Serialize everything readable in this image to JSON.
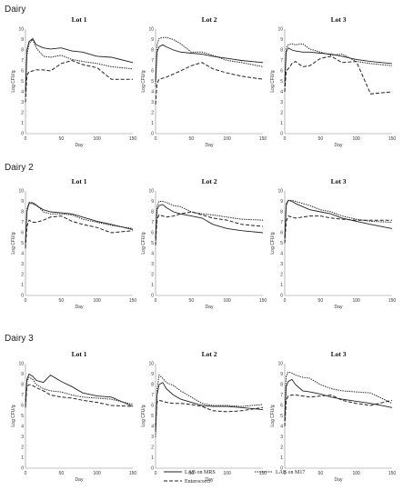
{
  "sections": [
    "Dairy",
    "Dairy 2",
    "Dairy 3"
  ],
  "legend": {
    "items": [
      {
        "name": "LAB on MRS",
        "style": "solid"
      },
      {
        "name": "LAB on M17",
        "style": "dotted"
      },
      {
        "name": "Enterococci",
        "style": "dashed"
      }
    ]
  },
  "chart_data": [
    {
      "type": "line",
      "section": "Dairy",
      "title": "Lot 1",
      "xlabel": "Day",
      "ylabel": "Log CFU/g",
      "xlim": [
        0,
        150
      ],
      "ylim": [
        0,
        10
      ],
      "xticks": [
        0,
        50,
        100,
        150
      ],
      "yticks": [
        0,
        1,
        2,
        3,
        4,
        5,
        6,
        7,
        8,
        9,
        10
      ],
      "series": [
        {
          "name": "LAB on MRS",
          "x": [
            0,
            2,
            5,
            10,
            15,
            25,
            35,
            50,
            65,
            80,
            100,
            120,
            150
          ],
          "y": [
            4.0,
            8.0,
            8.8,
            9.1,
            8.5,
            8.2,
            8.1,
            8.2,
            7.9,
            7.8,
            7.4,
            7.3,
            6.8
          ]
        },
        {
          "name": "LAB on M17",
          "x": [
            0,
            2,
            5,
            10,
            15,
            25,
            35,
            50,
            65,
            80,
            100,
            120,
            150
          ],
          "y": [
            3.5,
            7.5,
            8.6,
            9.0,
            8.2,
            7.4,
            7.3,
            7.5,
            7.1,
            6.9,
            6.7,
            6.4,
            6.2
          ]
        },
        {
          "name": "Enterococci",
          "x": [
            0,
            2,
            5,
            10,
            15,
            25,
            35,
            50,
            65,
            80,
            100,
            120,
            150
          ],
          "y": [
            3.0,
            5.6,
            5.9,
            6.0,
            6.1,
            6.1,
            6.0,
            6.7,
            7.0,
            6.6,
            6.3,
            5.2,
            5.2
          ]
        }
      ]
    },
    {
      "type": "line",
      "section": "Dairy",
      "title": "Lot 2",
      "xlabel": "Day",
      "ylabel": "Log CFU/g",
      "xlim": [
        0,
        150
      ],
      "ylim": [
        0,
        10
      ],
      "xticks": [
        0,
        50,
        100,
        150
      ],
      "yticks": [
        0,
        1,
        2,
        3,
        4,
        5,
        6,
        7,
        8,
        9,
        10
      ],
      "series": [
        {
          "name": "LAB on MRS",
          "x": [
            0,
            2,
            5,
            10,
            15,
            25,
            35,
            50,
            65,
            80,
            100,
            120,
            150
          ],
          "y": [
            5.0,
            7.8,
            8.3,
            8.5,
            8.3,
            8.0,
            7.8,
            7.7,
            7.6,
            7.4,
            7.2,
            7.0,
            6.8
          ]
        },
        {
          "name": "LAB on M17",
          "x": [
            0,
            2,
            5,
            10,
            15,
            25,
            35,
            50,
            65,
            80,
            100,
            120,
            150
          ],
          "y": [
            4.5,
            8.5,
            9.1,
            9.2,
            9.2,
            9.0,
            8.6,
            7.8,
            7.8,
            7.5,
            7.0,
            6.8,
            6.4
          ]
        },
        {
          "name": "Enterococci",
          "x": [
            0,
            2,
            5,
            10,
            15,
            25,
            35,
            50,
            65,
            80,
            100,
            120,
            150
          ],
          "y": [
            2.8,
            4.8,
            5.2,
            5.3,
            5.4,
            5.7,
            6.0,
            6.5,
            6.8,
            6.2,
            5.8,
            5.5,
            5.2
          ]
        }
      ]
    },
    {
      "type": "line",
      "section": "Dairy",
      "title": "Lot 3",
      "xlabel": "Day",
      "ylabel": "Log CFU/g",
      "xlim": [
        0,
        150
      ],
      "ylim": [
        0,
        10
      ],
      "xticks": [
        0,
        50,
        100,
        150
      ],
      "yticks": [
        0,
        1,
        2,
        3,
        4,
        5,
        6,
        7,
        8,
        9,
        10
      ],
      "series": [
        {
          "name": "LAB on MRS",
          "x": [
            0,
            2,
            5,
            10,
            15,
            25,
            35,
            50,
            65,
            80,
            100,
            120,
            150
          ],
          "y": [
            4.5,
            7.8,
            8.2,
            8.0,
            7.9,
            7.8,
            7.8,
            7.7,
            7.6,
            7.4,
            7.1,
            6.9,
            6.7
          ]
        },
        {
          "name": "LAB on M17",
          "x": [
            0,
            2,
            5,
            10,
            15,
            25,
            35,
            50,
            65,
            80,
            100,
            120,
            150
          ],
          "y": [
            5.0,
            8.2,
            8.5,
            8.6,
            8.5,
            8.6,
            8.1,
            7.8,
            7.5,
            7.6,
            6.9,
            6.7,
            6.5
          ]
        },
        {
          "name": "Enterococci",
          "x": [
            0,
            2,
            5,
            10,
            15,
            25,
            35,
            50,
            65,
            80,
            100,
            120,
            150
          ],
          "y": [
            4.0,
            6.0,
            6.2,
            6.7,
            6.9,
            6.4,
            6.5,
            7.2,
            7.4,
            6.8,
            6.9,
            3.8,
            4.0
          ]
        }
      ]
    },
    {
      "type": "line",
      "section": "Dairy 2",
      "title": "Lot 1",
      "xlabel": "Day",
      "ylabel": "Log CFU/g",
      "xlim": [
        0,
        150
      ],
      "ylim": [
        0,
        10
      ],
      "xticks": [
        0,
        50,
        100,
        150
      ],
      "yticks": [
        0,
        1,
        2,
        3,
        4,
        5,
        6,
        7,
        8,
        9,
        10
      ],
      "series": [
        {
          "name": "LAB on MRS",
          "x": [
            0,
            2,
            5,
            10,
            15,
            25,
            35,
            50,
            65,
            80,
            100,
            120,
            150
          ],
          "y": [
            5.0,
            8.0,
            8.8,
            8.8,
            8.6,
            8.2,
            8.0,
            7.9,
            7.8,
            7.5,
            7.1,
            6.8,
            6.3
          ]
        },
        {
          "name": "LAB on M17",
          "x": [
            0,
            2,
            5,
            10,
            15,
            25,
            35,
            50,
            65,
            80,
            100,
            120,
            150
          ],
          "y": [
            4.8,
            8.3,
            8.9,
            8.9,
            8.7,
            8.0,
            7.8,
            7.8,
            7.7,
            7.3,
            7.0,
            6.7,
            6.4
          ]
        },
        {
          "name": "Enterococci",
          "x": [
            0,
            2,
            5,
            10,
            15,
            25,
            35,
            50,
            65,
            80,
            100,
            120,
            150
          ],
          "y": [
            4.5,
            6.6,
            7.2,
            7.0,
            7.0,
            7.2,
            7.5,
            7.6,
            7.1,
            6.8,
            6.5,
            6.0,
            6.2
          ]
        }
      ]
    },
    {
      "type": "line",
      "section": "Dairy 2",
      "title": "Lot 2",
      "xlabel": "Day",
      "ylabel": "Log CFU/g",
      "xlim": [
        0,
        150
      ],
      "ylim": [
        0,
        10
      ],
      "xticks": [
        0,
        50,
        100,
        150
      ],
      "yticks": [
        0,
        1,
        2,
        3,
        4,
        5,
        6,
        7,
        8,
        9,
        10
      ],
      "series": [
        {
          "name": "LAB on MRS",
          "x": [
            0,
            2,
            5,
            10,
            15,
            25,
            35,
            50,
            65,
            80,
            100,
            120,
            150
          ],
          "y": [
            5.5,
            8.2,
            8.6,
            8.7,
            8.4,
            8.0,
            7.8,
            7.6,
            7.4,
            6.8,
            6.4,
            6.2,
            6.0
          ]
        },
        {
          "name": "LAB on M17",
          "x": [
            0,
            2,
            5,
            10,
            15,
            25,
            35,
            50,
            65,
            80,
            100,
            120,
            150
          ],
          "y": [
            5.0,
            8.5,
            9.0,
            9.0,
            8.9,
            8.6,
            8.5,
            8.0,
            7.8,
            7.7,
            7.5,
            7.3,
            7.2
          ]
        },
        {
          "name": "Enterococci",
          "x": [
            0,
            2,
            5,
            10,
            15,
            25,
            35,
            50,
            65,
            80,
            100,
            120,
            150
          ],
          "y": [
            4.8,
            7.3,
            7.7,
            7.6,
            7.5,
            7.6,
            7.8,
            8.0,
            7.7,
            7.4,
            7.2,
            6.8,
            6.6
          ]
        }
      ]
    },
    {
      "type": "line",
      "section": "Dairy 2",
      "title": "Lot 3",
      "xlabel": "Day",
      "ylabel": "Log CFU/g",
      "xlim": [
        0,
        150
      ],
      "ylim": [
        0,
        10
      ],
      "xticks": [
        0,
        50,
        100,
        150
      ],
      "yticks": [
        0,
        1,
        2,
        3,
        4,
        5,
        6,
        7,
        8,
        9,
        10
      ],
      "series": [
        {
          "name": "LAB on MRS",
          "x": [
            0,
            2,
            5,
            10,
            15,
            25,
            35,
            50,
            65,
            80,
            100,
            120,
            150
          ],
          "y": [
            5.5,
            8.6,
            9.1,
            9.0,
            8.8,
            8.5,
            8.2,
            8.0,
            7.8,
            7.4,
            7.1,
            6.8,
            6.4
          ]
        },
        {
          "name": "LAB on M17",
          "x": [
            0,
            2,
            5,
            10,
            15,
            25,
            35,
            50,
            65,
            80,
            100,
            120,
            150
          ],
          "y": [
            5.0,
            8.8,
            9.1,
            9.1,
            9.0,
            8.8,
            8.6,
            8.2,
            8.0,
            7.6,
            7.3,
            7.1,
            7.0
          ]
        },
        {
          "name": "Enterococci",
          "x": [
            0,
            2,
            5,
            10,
            15,
            25,
            35,
            50,
            65,
            80,
            100,
            120,
            150
          ],
          "y": [
            5.0,
            7.1,
            7.6,
            7.5,
            7.4,
            7.5,
            7.6,
            7.6,
            7.4,
            7.3,
            7.2,
            7.2,
            7.2
          ]
        }
      ]
    },
    {
      "type": "line",
      "section": "Dairy 3",
      "title": "Lot 1",
      "xlabel": "Day",
      "ylabel": "Log CFU/g",
      "xlim": [
        0,
        150
      ],
      "ylim": [
        0,
        10
      ],
      "xticks": [
        0,
        50,
        100,
        150
      ],
      "yticks": [
        0,
        1,
        2,
        3,
        4,
        5,
        6,
        7,
        8,
        9,
        10
      ],
      "series": [
        {
          "name": "LAB on MRS",
          "x": [
            0,
            2,
            5,
            10,
            15,
            25,
            35,
            50,
            65,
            80,
            100,
            120,
            150
          ],
          "y": [
            6.0,
            8.5,
            9.0,
            8.8,
            8.4,
            8.2,
            8.9,
            8.3,
            7.8,
            7.2,
            6.9,
            6.8,
            5.9
          ]
        },
        {
          "name": "LAB on M17",
          "x": [
            0,
            2,
            5,
            10,
            15,
            25,
            35,
            50,
            65,
            80,
            100,
            120,
            150
          ],
          "y": [
            6.5,
            8.3,
            8.7,
            8.5,
            8.0,
            7.6,
            7.4,
            7.3,
            7.0,
            6.8,
            6.7,
            6.6,
            6.1
          ]
        },
        {
          "name": "Enterococci",
          "x": [
            0,
            2,
            5,
            10,
            15,
            25,
            35,
            50,
            65,
            80,
            100,
            120,
            150
          ],
          "y": [
            5.8,
            7.8,
            8.0,
            7.9,
            7.7,
            7.4,
            7.0,
            6.8,
            6.7,
            6.5,
            6.3,
            6.0,
            5.9
          ]
        }
      ]
    },
    {
      "type": "line",
      "section": "Dairy 3",
      "title": "Lot 2",
      "xlabel": "Day",
      "ylabel": "Log CFU/g",
      "xlim": [
        0,
        150
      ],
      "ylim": [
        0,
        10
      ],
      "xticks": [
        0,
        50,
        100,
        150
      ],
      "yticks": [
        0,
        1,
        2,
        3,
        4,
        5,
        6,
        7,
        8,
        9,
        10
      ],
      "series": [
        {
          "name": "LAB on MRS",
          "x": [
            0,
            2,
            5,
            10,
            15,
            25,
            35,
            50,
            65,
            80,
            100,
            120,
            150
          ],
          "y": [
            3.5,
            7.0,
            8.0,
            8.2,
            7.6,
            7.0,
            6.6,
            6.3,
            6.0,
            5.9,
            5.9,
            5.8,
            5.6
          ]
        },
        {
          "name": "LAB on M17",
          "x": [
            0,
            2,
            5,
            10,
            15,
            25,
            35,
            50,
            65,
            80,
            100,
            120,
            150
          ],
          "y": [
            3.0,
            7.5,
            8.9,
            8.6,
            8.2,
            7.9,
            7.4,
            6.8,
            6.2,
            6.0,
            6.0,
            5.9,
            6.1
          ]
        },
        {
          "name": "Enterococci",
          "x": [
            0,
            2,
            5,
            10,
            15,
            25,
            35,
            50,
            65,
            80,
            100,
            120,
            150
          ],
          "y": [
            4.0,
            6.3,
            6.5,
            6.4,
            6.3,
            6.2,
            6.2,
            6.1,
            5.9,
            5.5,
            5.4,
            5.5,
            5.8
          ]
        }
      ]
    },
    {
      "type": "line",
      "section": "Dairy 3",
      "title": "Lot 3",
      "xlabel": "Day",
      "ylabel": "Log CFU/g",
      "xlim": [
        0,
        150
      ],
      "ylim": [
        0,
        10
      ],
      "xticks": [
        0,
        50,
        100,
        150
      ],
      "yticks": [
        0,
        1,
        2,
        3,
        4,
        5,
        6,
        7,
        8,
        9,
        10
      ],
      "series": [
        {
          "name": "LAB on MRS",
          "x": [
            0,
            2,
            5,
            10,
            15,
            25,
            35,
            50,
            65,
            80,
            100,
            120,
            150
          ],
          "y": [
            4.5,
            7.8,
            8.3,
            8.5,
            8.0,
            7.4,
            7.3,
            7.1,
            6.8,
            6.6,
            6.4,
            6.2,
            5.8
          ]
        },
        {
          "name": "LAB on M17",
          "x": [
            0,
            2,
            5,
            10,
            15,
            25,
            35,
            50,
            65,
            80,
            100,
            120,
            150
          ],
          "y": [
            5.0,
            8.8,
            9.2,
            9.1,
            8.9,
            8.7,
            8.6,
            8.0,
            7.6,
            7.4,
            7.3,
            7.2,
            6.2
          ]
        },
        {
          "name": "Enterococci",
          "x": [
            0,
            2,
            5,
            10,
            15,
            25,
            35,
            50,
            65,
            80,
            100,
            120,
            150
          ],
          "y": [
            4.0,
            6.5,
            6.9,
            7.0,
            7.0,
            6.9,
            6.8,
            6.9,
            7.0,
            6.5,
            6.2,
            6.0,
            6.5
          ]
        }
      ]
    }
  ]
}
